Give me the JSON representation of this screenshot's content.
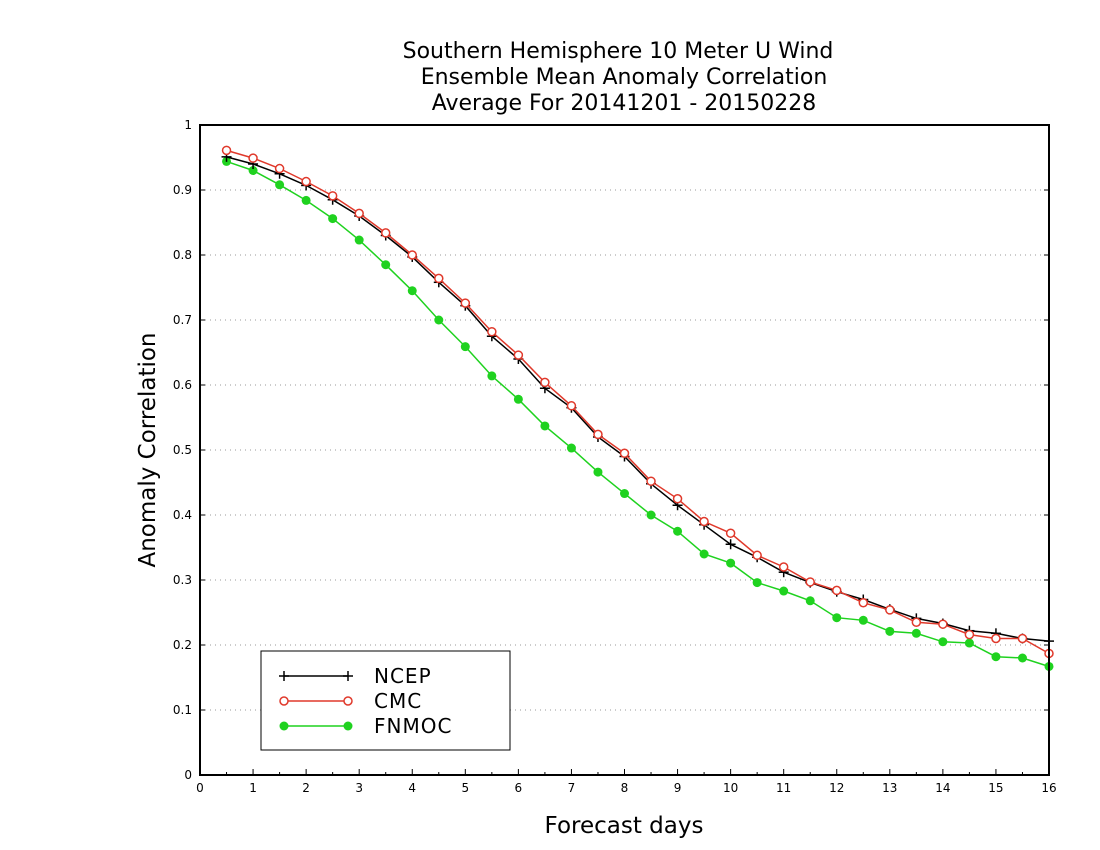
{
  "chart_data": {
    "type": "line",
    "title": [
      "Southern Hemisphere 10 Meter U Wind",
      "Ensemble Mean Anomaly Correlation",
      "Average For 20141201 - 20150228"
    ],
    "xlabel": "Forecast days",
    "ylabel": "Anomaly Correlation",
    "xlim": [
      0,
      16
    ],
    "ylim": [
      0,
      1
    ],
    "xticks": [
      "0",
      "1",
      "2",
      "3",
      "4",
      "5",
      "6",
      "7",
      "8",
      "9",
      "10",
      "11",
      "12",
      "13",
      "14",
      "15",
      "16"
    ],
    "yticks": [
      "0",
      "0.1",
      "0.2",
      "0.3",
      "0.4",
      "0.5",
      "0.6",
      "0.7",
      "0.8",
      "0.9",
      "1"
    ],
    "grid": "horizontal dotted",
    "legend_position": "bottom-left",
    "x": [
      0.5,
      1,
      1.5,
      2,
      2.5,
      3,
      3.5,
      4,
      4.5,
      5,
      5.5,
      6,
      6.5,
      7,
      7.5,
      8,
      8.5,
      9,
      9.5,
      10,
      10.5,
      11,
      11.5,
      12,
      12.5,
      13,
      13.5,
      14,
      14.5,
      15,
      15.5,
      16
    ],
    "series": [
      {
        "name": "NCEP",
        "color": "#000000",
        "marker": "plus",
        "values": [
          0.951,
          0.94,
          0.925,
          0.907,
          0.885,
          0.86,
          0.83,
          0.797,
          0.758,
          0.722,
          0.675,
          0.64,
          0.595,
          0.565,
          0.52,
          0.49,
          0.448,
          0.415,
          0.385,
          0.355,
          0.335,
          0.312,
          0.296,
          0.282,
          0.27,
          0.255,
          0.241,
          0.233,
          0.222,
          0.218,
          0.21,
          0.206
        ]
      },
      {
        "name": "CMC",
        "color": "#e0392b",
        "marker": "open-circle",
        "values": [
          0.961,
          0.949,
          0.933,
          0.913,
          0.891,
          0.864,
          0.834,
          0.8,
          0.764,
          0.726,
          0.682,
          0.646,
          0.604,
          0.568,
          0.524,
          0.495,
          0.452,
          0.425,
          0.39,
          0.372,
          0.338,
          0.32,
          0.297,
          0.284,
          0.265,
          0.254,
          0.235,
          0.232,
          0.216,
          0.21,
          0.21,
          0.187
        ]
      },
      {
        "name": "FNMOC",
        "color": "#1fd21f",
        "marker": "filled-circle",
        "values": [
          0.944,
          0.93,
          0.908,
          0.884,
          0.856,
          0.823,
          0.785,
          0.745,
          0.7,
          0.659,
          0.614,
          0.578,
          0.537,
          0.503,
          0.466,
          0.433,
          0.4,
          0.375,
          0.34,
          0.326,
          0.296,
          0.283,
          0.268,
          0.242,
          0.238,
          0.221,
          0.218,
          0.205,
          0.203,
          0.182,
          0.18,
          0.167
        ]
      }
    ]
  }
}
